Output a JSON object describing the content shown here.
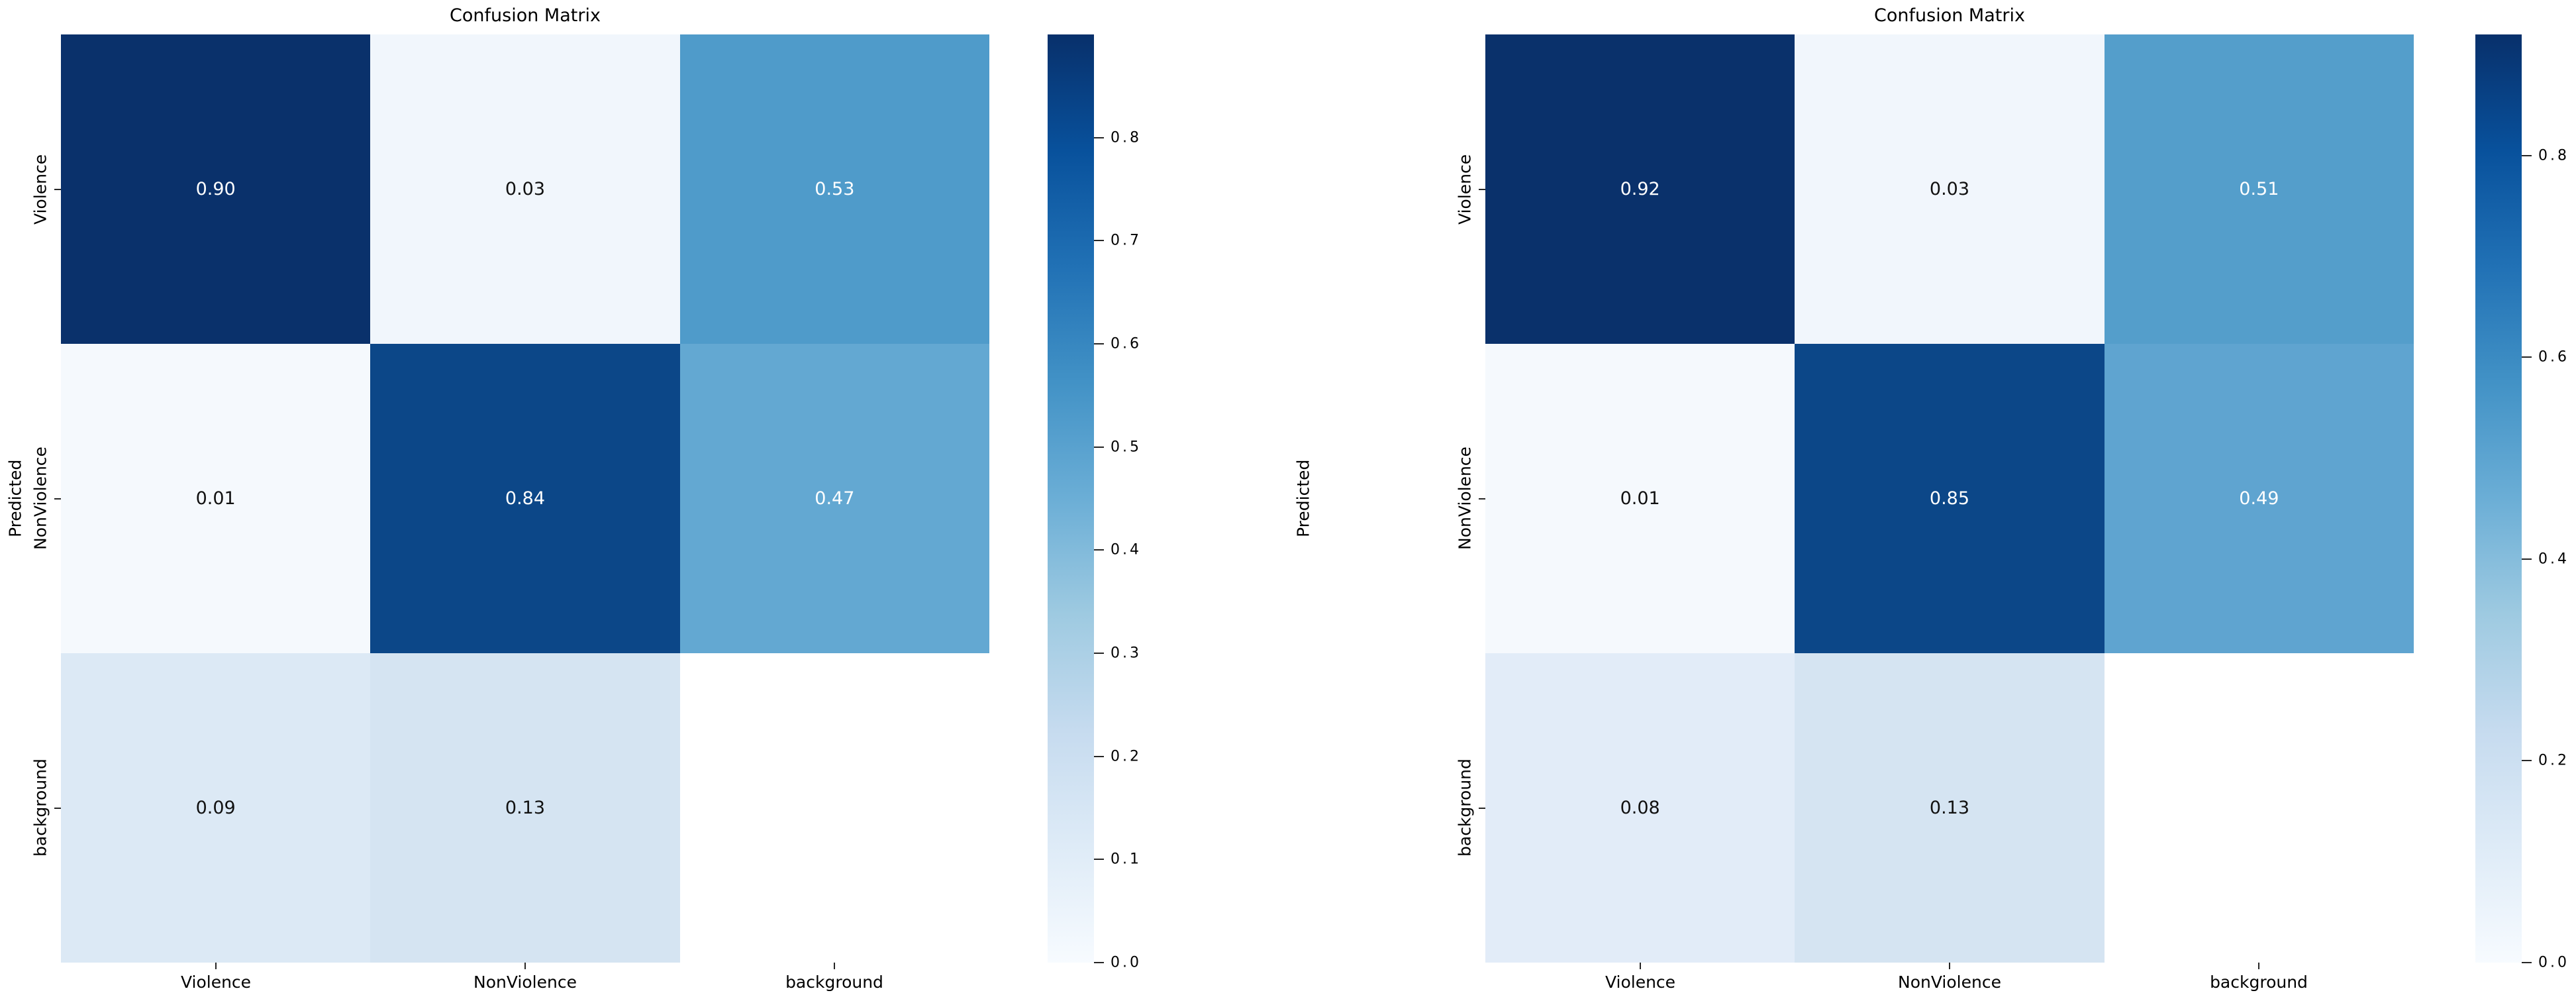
{
  "figures": [
    {
      "title": "Confusion Matrix",
      "ylabel": "Predicted",
      "row_labels": [
        "Violence",
        "NonViolence",
        "background"
      ],
      "col_labels": [
        "Violence",
        "NonViolence",
        "background"
      ],
      "cells": [
        [
          {
            "text": "0.90",
            "bg": "#0a316b",
            "fg": "#ffffff"
          },
          {
            "text": "0.03",
            "bg": "#f1f6fc",
            "fg": "#111111"
          },
          {
            "text": "0.53",
            "bg": "#4f9bca",
            "fg": "#ffffff"
          }
        ],
        [
          {
            "text": "0.01",
            "bg": "#f5f9fd",
            "fg": "#111111"
          },
          {
            "text": "0.84",
            "bg": "#0c4788",
            "fg": "#ffffff"
          },
          {
            "text": "0.47",
            "bg": "#63a8d2",
            "fg": "#ffffff"
          }
        ],
        [
          {
            "text": "0.09",
            "bg": "#dce9f5",
            "fg": "#111111"
          },
          {
            "text": "0.13",
            "bg": "#d5e4f2",
            "fg": "#111111"
          },
          {
            "text": "",
            "bg": "#ffffff",
            "fg": "#111111"
          }
        ]
      ],
      "colorbar": {
        "vmax": 0.9,
        "ticks": [
          "0.8",
          "0.7",
          "0.6",
          "0.5",
          "0.4",
          "0.3",
          "0.2",
          "0.1",
          "0.0"
        ]
      }
    },
    {
      "title": "Confusion Matrix",
      "ylabel": "Predicted",
      "row_labels": [
        "Violence",
        "NonViolence",
        "background"
      ],
      "col_labels": [
        "Violence",
        "NonViolence",
        "background"
      ],
      "cells": [
        [
          {
            "text": "0.92",
            "bg": "#0a316b",
            "fg": "#ffffff"
          },
          {
            "text": "0.03",
            "bg": "#f1f6fc",
            "fg": "#111111"
          },
          {
            "text": "0.51",
            "bg": "#549ecb",
            "fg": "#ffffff"
          }
        ],
        [
          {
            "text": "0.01",
            "bg": "#f5f9fd",
            "fg": "#111111"
          },
          {
            "text": "0.85",
            "bg": "#0c4788",
            "fg": "#ffffff"
          },
          {
            "text": "0.49",
            "bg": "#5fa4d0",
            "fg": "#ffffff"
          }
        ],
        [
          {
            "text": "0.08",
            "bg": "#e2ecf8",
            "fg": "#111111"
          },
          {
            "text": "0.13",
            "bg": "#d5e4f2",
            "fg": "#111111"
          },
          {
            "text": "",
            "bg": "#ffffff",
            "fg": "#111111"
          }
        ]
      ],
      "colorbar": {
        "vmax": 0.92,
        "ticks": [
          "0.8",
          "0.6",
          "0.4",
          "0.2",
          "0.0"
        ]
      }
    }
  ],
  "colors": {
    "colormap": "Blues",
    "cmap_low": "#f7fbff",
    "cmap_high": "#08306b",
    "background": "#ffffff"
  },
  "chart_data": [
    {
      "type": "heatmap",
      "title": "Confusion Matrix",
      "ylabel": "Predicted",
      "xlabel": "",
      "rows": [
        "Violence",
        "NonViolence",
        "background"
      ],
      "cols": [
        "Violence",
        "NonViolence",
        "background"
      ],
      "values": [
        [
          0.9,
          0.03,
          0.53
        ],
        [
          0.01,
          0.84,
          0.47
        ],
        [
          0.09,
          0.13,
          null
        ]
      ],
      "colormap": "Blues",
      "vmin": 0.0,
      "vmax": 0.9,
      "colorbar_ticks": [
        0.0,
        0.1,
        0.2,
        0.3,
        0.4,
        0.5,
        0.6,
        0.7,
        0.8
      ],
      "legend_position": "right-colorbar",
      "grid": false
    },
    {
      "type": "heatmap",
      "title": "Confusion Matrix",
      "ylabel": "Predicted",
      "xlabel": "",
      "rows": [
        "Violence",
        "NonViolence",
        "background"
      ],
      "cols": [
        "Violence",
        "NonViolence",
        "background"
      ],
      "values": [
        [
          0.92,
          0.03,
          0.51
        ],
        [
          0.01,
          0.85,
          0.49
        ],
        [
          0.08,
          0.13,
          null
        ]
      ],
      "colormap": "Blues",
      "vmin": 0.0,
      "vmax": 0.92,
      "colorbar_ticks": [
        0.0,
        0.2,
        0.4,
        0.6,
        0.8
      ],
      "legend_position": "right-colorbar",
      "grid": false
    }
  ]
}
